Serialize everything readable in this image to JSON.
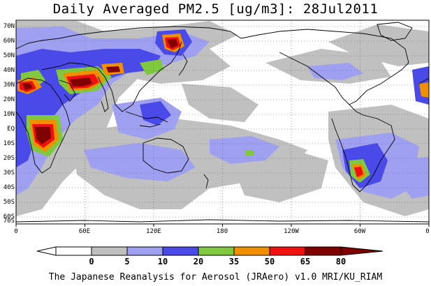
{
  "title": "Daily Averaged PM2.5 [ug/m3]: 28Jul2011",
  "credit": "The Japanese Reanalysis for Aerosol (JRAero) v1.0 MRI/KU_RIAM",
  "lat_labels": [
    "70N",
    "60N",
    "50N",
    "40N",
    "30N",
    "20N",
    "10N",
    "EQ",
    "10S",
    "20S",
    "30S",
    "40S",
    "50S",
    "60S",
    "70S"
  ],
  "lon_labels": [
    "0",
    "60E",
    "120E",
    "180",
    "120W",
    "60W",
    "0"
  ],
  "colorbar": {
    "levels": [
      "0",
      "5",
      "10",
      "20",
      "35",
      "50",
      "65",
      "80"
    ],
    "colors": [
      "#ffffff",
      "#c0c0c0",
      "#a0a0f0",
      "#4a4ae8",
      "#80c840",
      "#f09000",
      "#f01010",
      "#800000"
    ]
  }
}
